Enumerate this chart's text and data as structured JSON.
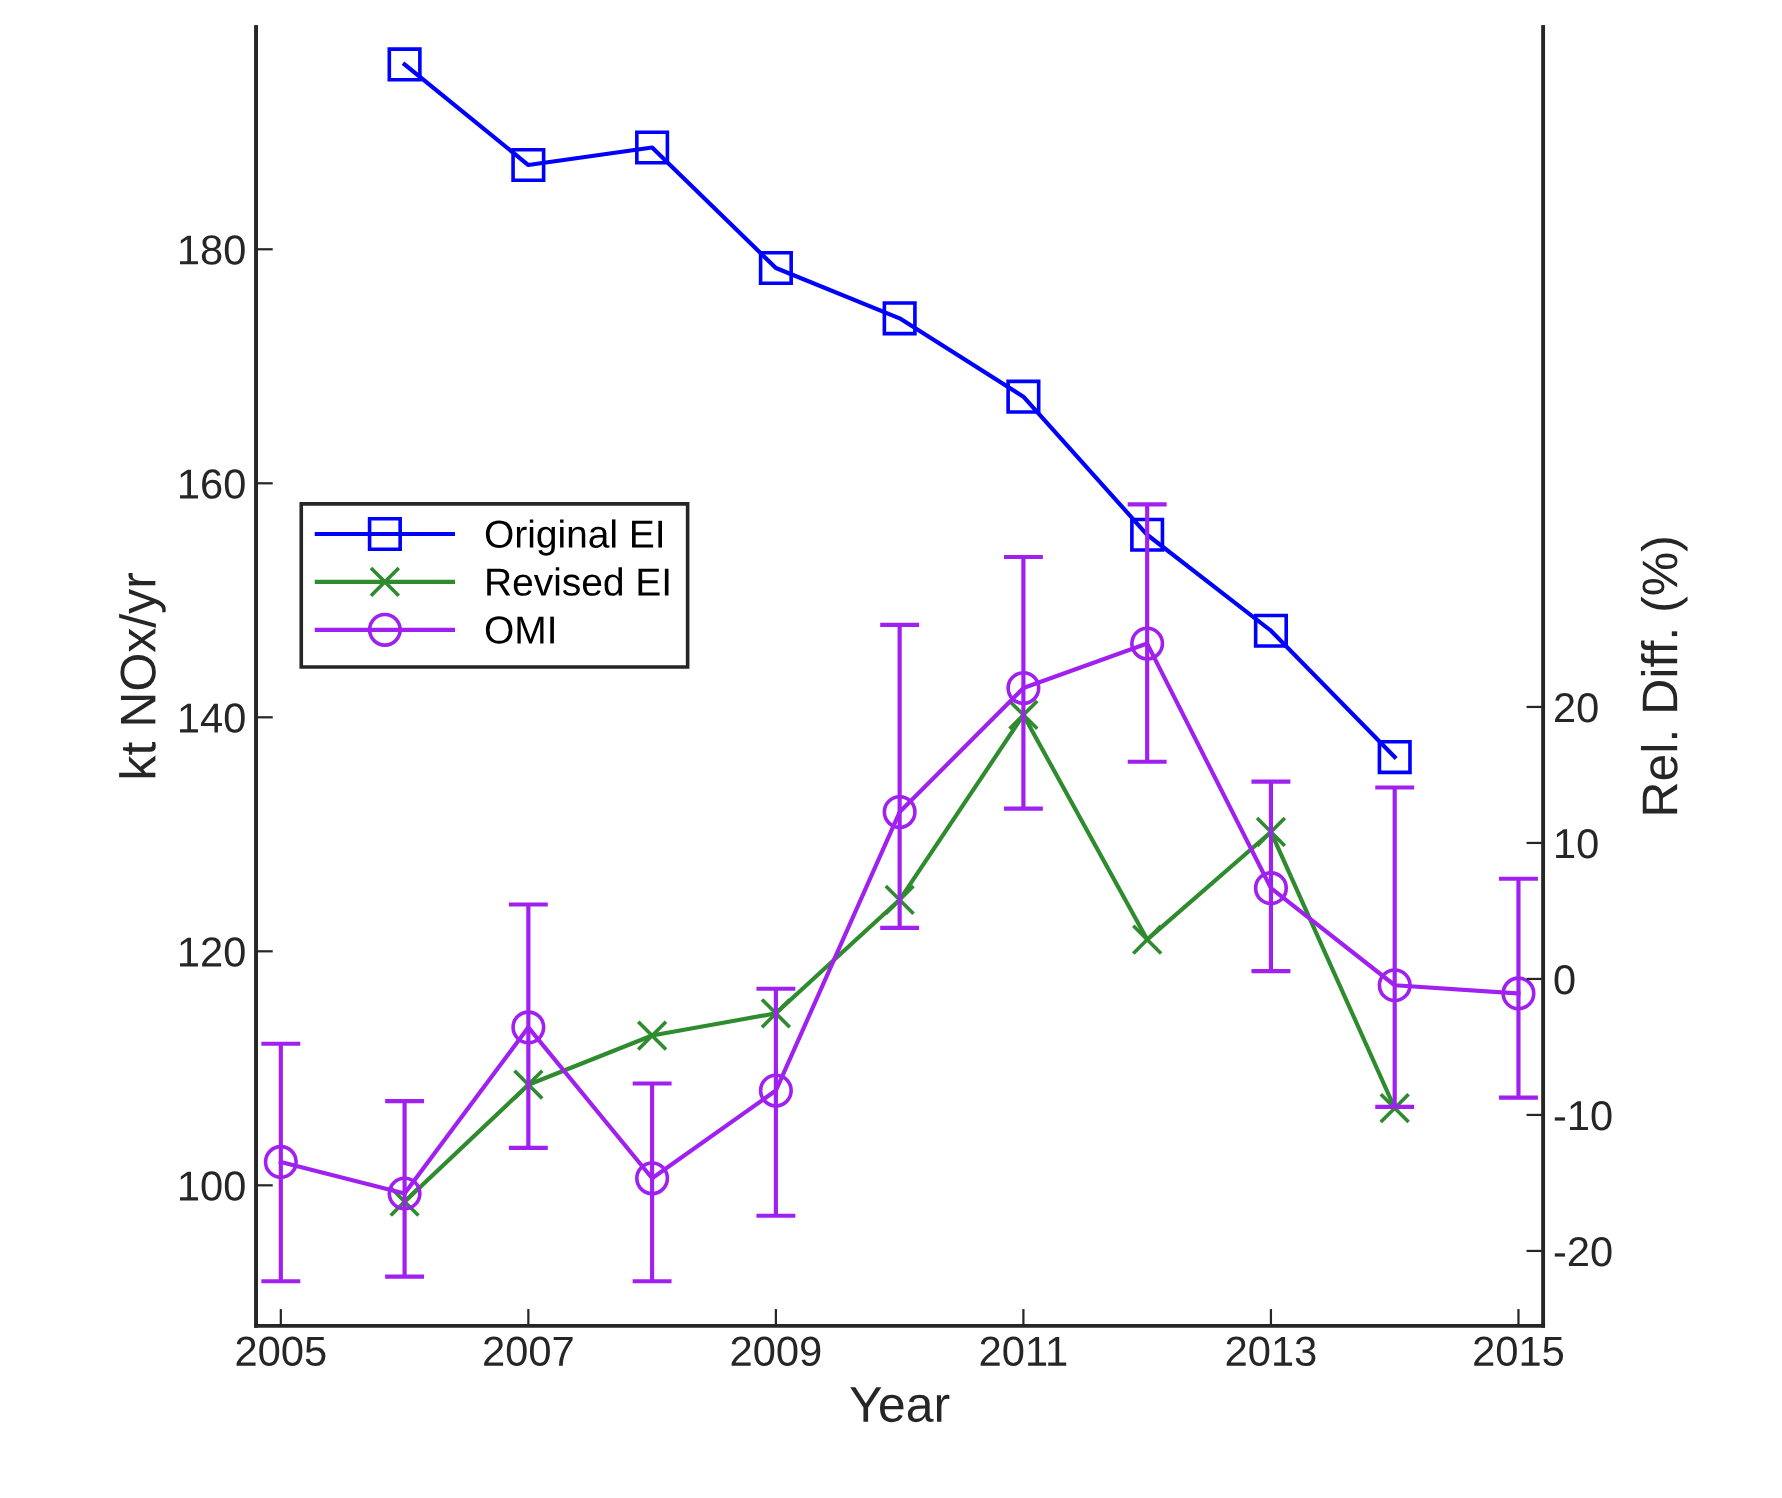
{
  "chart_data": {
    "type": "line",
    "xlabel": "Year",
    "ylabel": "kt NOx/yr",
    "y2label": "Rel. Diff. (%)",
    "xlim": [
      2004.8,
      2015.2
    ],
    "xticks": [
      2005,
      2007,
      2009,
      2011,
      2013,
      2015
    ],
    "ylim": [
      88,
      199
    ],
    "yticks": [
      100,
      120,
      140,
      160,
      180
    ],
    "y2lim": [
      -25.5,
      70
    ],
    "y2ticks": [
      -20,
      -10,
      0,
      10,
      20
    ],
    "grid": false,
    "legend": "left",
    "series": [
      {
        "name": "Original EI",
        "color": "#0000ff",
        "marker": "square",
        "x": [
          2006,
          2007,
          2008,
          2009,
          2010,
          2011,
          2012,
          2013,
          2014
        ],
        "values": [
          195.8,
          187.2,
          188.7,
          178.4,
          174.1,
          167.4,
          155.6,
          147.4,
          136.6
        ]
      },
      {
        "name": "Revised EI",
        "color": "#2e8b2e",
        "marker": "cross",
        "x": [
          2006,
          2007,
          2008,
          2009,
          2010,
          2011,
          2012,
          2013,
          2014
        ],
        "values": [
          98.6,
          108.6,
          112.8,
          114.7,
          124.4,
          140.2,
          121.0,
          130.2,
          106.6
        ]
      },
      {
        "name": "OMI",
        "color": "#a020f0",
        "marker": "circle",
        "x": [
          2005,
          2006,
          2007,
          2008,
          2009,
          2010,
          2011,
          2012,
          2013,
          2014,
          2015
        ],
        "values": [
          102.0,
          99.3,
          113.5,
          100.6,
          108.1,
          131.9,
          142.5,
          146.3,
          125.4,
          117.1,
          116.4
        ],
        "errors": [
          [
            91.8,
            112.1
          ],
          [
            92.2,
            107.2
          ],
          [
            103.2,
            124.0
          ],
          [
            91.8,
            108.7
          ],
          [
            97.4,
            116.8
          ],
          [
            122.0,
            147.9
          ],
          [
            132.2,
            153.7
          ],
          [
            136.2,
            158.2
          ],
          [
            118.3,
            134.5
          ],
          [
            106.7,
            134.0
          ],
          [
            107.5,
            126.2
          ]
        ]
      }
    ]
  }
}
